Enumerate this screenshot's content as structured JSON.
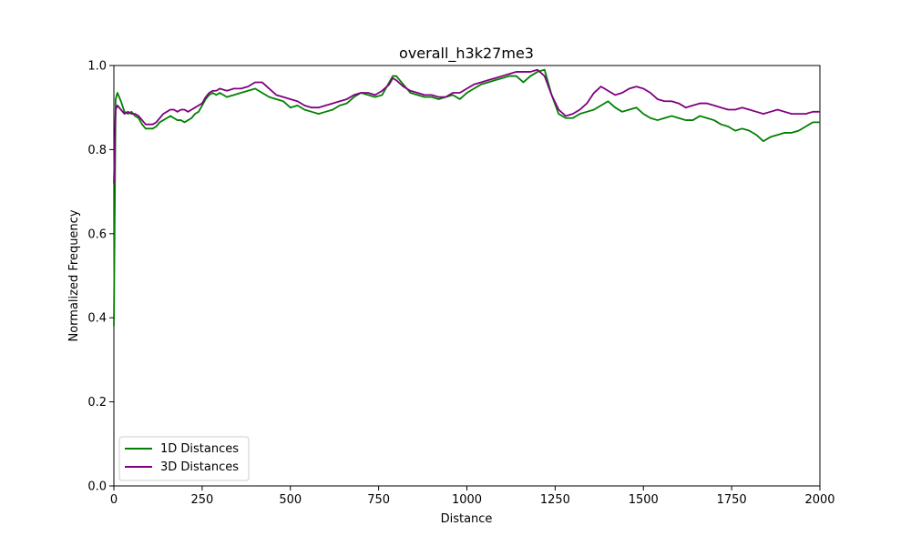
{
  "chart_data": {
    "type": "line",
    "title": "overall_h3k27me3",
    "xlabel": "Distance",
    "ylabel": "Normalized Frequency",
    "xlim": [
      0,
      2000
    ],
    "ylim": [
      0,
      1.0
    ],
    "xticks": [
      0,
      250,
      500,
      750,
      1000,
      1250,
      1500,
      1750,
      2000
    ],
    "xtick_labels": [
      "0",
      "250",
      "500",
      "750",
      "1000",
      "1250",
      "1500",
      "1750",
      "2000"
    ],
    "yticks": [
      0.0,
      0.2,
      0.4,
      0.6,
      0.8,
      1.0
    ],
    "ytick_labels": [
      "0.0",
      "0.2",
      "0.4",
      "0.6",
      "0.8",
      "1.0"
    ],
    "grid": false,
    "legend_position": "lower-left",
    "series": [
      {
        "name": "1D Distances",
        "color": "#008000",
        "x": [
          0,
          5,
          10,
          20,
          30,
          40,
          50,
          60,
          70,
          80,
          90,
          100,
          110,
          120,
          130,
          140,
          150,
          160,
          170,
          180,
          190,
          200,
          210,
          220,
          230,
          240,
          250,
          260,
          270,
          280,
          290,
          300,
          320,
          340,
          360,
          380,
          400,
          420,
          440,
          460,
          480,
          500,
          520,
          540,
          560,
          580,
          600,
          620,
          640,
          660,
          680,
          700,
          720,
          740,
          760,
          780,
          790,
          800,
          820,
          840,
          860,
          880,
          900,
          920,
          940,
          960,
          980,
          1000,
          1020,
          1040,
          1060,
          1080,
          1100,
          1120,
          1140,
          1160,
          1180,
          1200,
          1220,
          1240,
          1260,
          1280,
          1300,
          1320,
          1340,
          1360,
          1380,
          1400,
          1420,
          1440,
          1460,
          1480,
          1500,
          1520,
          1540,
          1560,
          1580,
          1600,
          1620,
          1640,
          1660,
          1680,
          1700,
          1720,
          1740,
          1760,
          1780,
          1800,
          1820,
          1840,
          1860,
          1880,
          1900,
          1920,
          1940,
          1960,
          1980,
          2000
        ],
        "values": [
          0.38,
          0.92,
          0.935,
          0.915,
          0.89,
          0.885,
          0.89,
          0.88,
          0.875,
          0.86,
          0.85,
          0.85,
          0.85,
          0.855,
          0.865,
          0.87,
          0.875,
          0.88,
          0.875,
          0.87,
          0.87,
          0.865,
          0.87,
          0.875,
          0.885,
          0.89,
          0.905,
          0.92,
          0.93,
          0.935,
          0.93,
          0.935,
          0.925,
          0.93,
          0.935,
          0.94,
          0.945,
          0.935,
          0.925,
          0.92,
          0.915,
          0.9,
          0.905,
          0.895,
          0.89,
          0.885,
          0.89,
          0.895,
          0.905,
          0.91,
          0.925,
          0.935,
          0.93,
          0.925,
          0.93,
          0.96,
          0.975,
          0.975,
          0.955,
          0.935,
          0.93,
          0.925,
          0.925,
          0.92,
          0.925,
          0.93,
          0.92,
          0.935,
          0.945,
          0.955,
          0.96,
          0.965,
          0.97,
          0.975,
          0.975,
          0.96,
          0.975,
          0.985,
          0.99,
          0.93,
          0.885,
          0.875,
          0.875,
          0.885,
          0.89,
          0.895,
          0.905,
          0.915,
          0.9,
          0.89,
          0.895,
          0.9,
          0.885,
          0.875,
          0.87,
          0.875,
          0.88,
          0.875,
          0.87,
          0.87,
          0.88,
          0.875,
          0.87,
          0.86,
          0.855,
          0.845,
          0.85,
          0.845,
          0.835,
          0.82,
          0.83,
          0.835,
          0.84,
          0.84,
          0.845,
          0.855,
          0.865,
          0.865
        ]
      },
      {
        "name": "3D Distances",
        "color": "#800080",
        "x": [
          0,
          5,
          10,
          20,
          30,
          40,
          50,
          60,
          70,
          80,
          90,
          100,
          110,
          120,
          130,
          140,
          150,
          160,
          170,
          180,
          190,
          200,
          210,
          220,
          230,
          240,
          250,
          260,
          270,
          280,
          290,
          300,
          320,
          340,
          360,
          380,
          400,
          420,
          440,
          460,
          480,
          500,
          520,
          540,
          560,
          580,
          600,
          620,
          640,
          660,
          680,
          700,
          720,
          740,
          760,
          780,
          790,
          800,
          820,
          840,
          860,
          880,
          900,
          920,
          940,
          960,
          980,
          1000,
          1020,
          1040,
          1060,
          1080,
          1100,
          1120,
          1140,
          1160,
          1180,
          1200,
          1220,
          1240,
          1260,
          1280,
          1300,
          1320,
          1340,
          1360,
          1380,
          1400,
          1420,
          1440,
          1460,
          1480,
          1500,
          1520,
          1540,
          1560,
          1580,
          1600,
          1620,
          1640,
          1660,
          1680,
          1700,
          1720,
          1740,
          1760,
          1780,
          1800,
          1820,
          1840,
          1860,
          1880,
          1900,
          1920,
          1940,
          1960,
          1980,
          2000
        ],
        "values": [
          0.72,
          0.895,
          0.905,
          0.895,
          0.885,
          0.89,
          0.885,
          0.885,
          0.88,
          0.87,
          0.86,
          0.86,
          0.86,
          0.865,
          0.875,
          0.885,
          0.89,
          0.895,
          0.895,
          0.89,
          0.895,
          0.895,
          0.89,
          0.895,
          0.9,
          0.905,
          0.91,
          0.925,
          0.935,
          0.94,
          0.94,
          0.945,
          0.94,
          0.945,
          0.945,
          0.95,
          0.96,
          0.96,
          0.945,
          0.93,
          0.925,
          0.92,
          0.915,
          0.905,
          0.9,
          0.9,
          0.905,
          0.91,
          0.915,
          0.92,
          0.93,
          0.935,
          0.935,
          0.93,
          0.94,
          0.955,
          0.97,
          0.965,
          0.95,
          0.94,
          0.935,
          0.93,
          0.93,
          0.925,
          0.925,
          0.935,
          0.935,
          0.945,
          0.955,
          0.96,
          0.965,
          0.97,
          0.975,
          0.98,
          0.985,
          0.985,
          0.985,
          0.99,
          0.975,
          0.93,
          0.895,
          0.88,
          0.885,
          0.895,
          0.91,
          0.935,
          0.95,
          0.94,
          0.93,
          0.935,
          0.945,
          0.95,
          0.945,
          0.935,
          0.92,
          0.915,
          0.915,
          0.91,
          0.9,
          0.905,
          0.91,
          0.91,
          0.905,
          0.9,
          0.895,
          0.895,
          0.9,
          0.895,
          0.89,
          0.885,
          0.89,
          0.895,
          0.89,
          0.885,
          0.885,
          0.885,
          0.89,
          0.89
        ]
      }
    ]
  }
}
